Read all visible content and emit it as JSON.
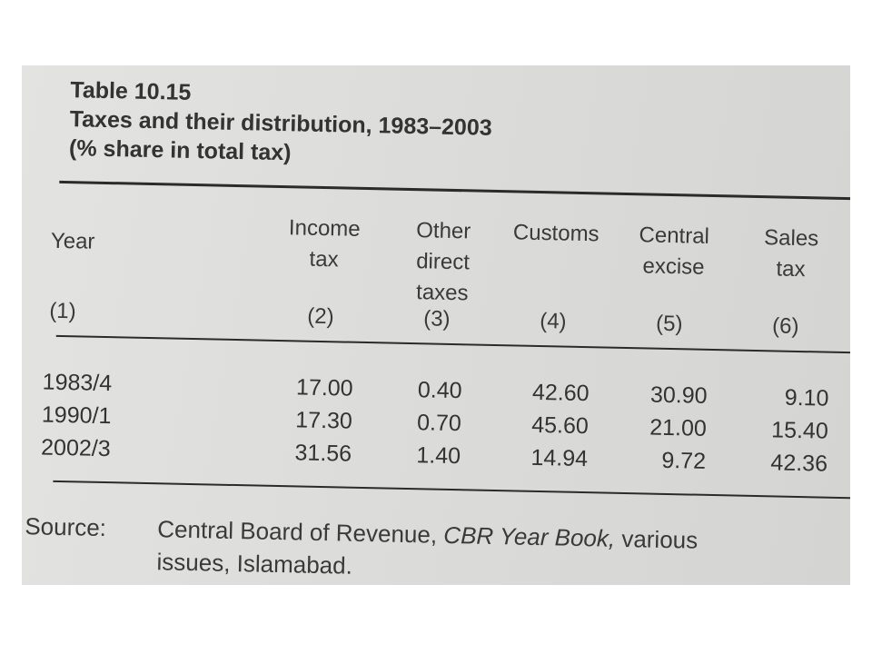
{
  "table": {
    "label": "Table 10.15",
    "title": "Taxes and their distribution, 1983–2003",
    "subtitle": "(% share in total tax)",
    "headers": [
      {
        "lines": [
          "Year"
        ],
        "num": "(1)"
      },
      {
        "lines": [
          "Income",
          "tax"
        ],
        "num": "(2)"
      },
      {
        "lines": [
          "Other",
          "direct",
          "taxes"
        ],
        "num": "(3)"
      },
      {
        "lines": [
          "Customs"
        ],
        "num": "(4)"
      },
      {
        "lines": [
          "Central",
          "excise"
        ],
        "num": "(5)"
      },
      {
        "lines": [
          "Sales",
          "tax"
        ],
        "num": "(6)"
      }
    ],
    "rows": [
      [
        "1983/4",
        "17.00",
        "0.40",
        "42.60",
        "30.90",
        "9.10"
      ],
      [
        "1990/1",
        "17.30",
        "0.70",
        "45.60",
        "21.00",
        "15.40"
      ],
      [
        "2002/3",
        "31.56",
        "1.40",
        "14.94",
        "9.72",
        "42.36"
      ]
    ]
  },
  "source": {
    "label": "Source:",
    "text_before": "Central Board of Revenue, ",
    "text_italic": "CBR Year Book,",
    "text_after": " various",
    "line2": "issues, Islamabad."
  }
}
